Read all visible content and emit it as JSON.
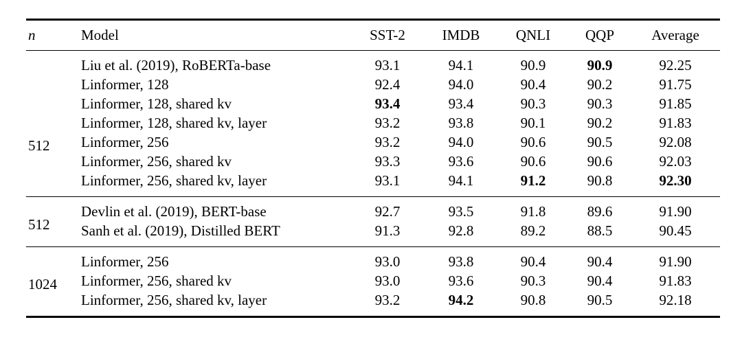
{
  "page": {
    "background_color": "#ffffff",
    "text_color": "#000000",
    "rule_color": "#000000"
  },
  "table": {
    "columns": [
      {
        "key": "n",
        "label": "n",
        "italic": true,
        "align": "left"
      },
      {
        "key": "model",
        "label": "Model",
        "italic": false,
        "align": "left"
      },
      {
        "key": "sst2",
        "label": "SST-2",
        "italic": false,
        "align": "center"
      },
      {
        "key": "imdb",
        "label": "IMDB",
        "italic": false,
        "align": "center"
      },
      {
        "key": "qnli",
        "label": "QNLI",
        "italic": false,
        "align": "center"
      },
      {
        "key": "qqp",
        "label": "QQP",
        "italic": false,
        "align": "center"
      },
      {
        "key": "avg",
        "label": "Average",
        "italic": false,
        "align": "center"
      }
    ],
    "groups": [
      {
        "n": "512",
        "rows": [
          {
            "model": "Liu et al. (2019), RoBERTa-base",
            "values": [
              "93.1",
              "94.1",
              "90.9",
              "90.9",
              "92.25"
            ],
            "bold": [
              3
            ]
          },
          {
            "model": "Linformer, 128",
            "values": [
              "92.4",
              "94.0",
              "90.4",
              "90.2",
              "91.75"
            ],
            "bold": []
          },
          {
            "model": "Linformer, 128, shared kv",
            "values": [
              "93.4",
              "93.4",
              "90.3",
              "90.3",
              "91.85"
            ],
            "bold": [
              0
            ]
          },
          {
            "model": "Linformer, 128, shared kv, layer",
            "values": [
              "93.2",
              "93.8",
              "90.1",
              "90.2",
              "91.83"
            ],
            "bold": []
          },
          {
            "model": "Linformer, 256",
            "values": [
              "93.2",
              "94.0",
              "90.6",
              "90.5",
              "92.08"
            ],
            "bold": []
          },
          {
            "model": "Linformer, 256, shared kv",
            "values": [
              "93.3",
              "93.6",
              "90.6",
              "90.6",
              "92.03"
            ],
            "bold": []
          },
          {
            "model": "Linformer, 256, shared kv, layer",
            "values": [
              "93.1",
              "94.1",
              "91.2",
              "90.8",
              "92.30"
            ],
            "bold": [
              2,
              4
            ]
          }
        ]
      },
      {
        "n": "512",
        "rows": [
          {
            "model": "Devlin et al. (2019), BERT-base",
            "values": [
              "92.7",
              "93.5",
              "91.8",
              "89.6",
              "91.90"
            ],
            "bold": []
          },
          {
            "model": "Sanh et al. (2019), Distilled BERT",
            "values": [
              "91.3",
              "92.8",
              "89.2",
              "88.5",
              "90.45"
            ],
            "bold": []
          }
        ]
      },
      {
        "n": "1024",
        "rows": [
          {
            "model": "Linformer, 256",
            "values": [
              "93.0",
              "93.8",
              "90.4",
              "90.4",
              "91.90"
            ],
            "bold": []
          },
          {
            "model": "Linformer, 256, shared kv",
            "values": [
              "93.0",
              "93.6",
              "90.3",
              "90.4",
              "91.83"
            ],
            "bold": []
          },
          {
            "model": "Linformer, 256, shared kv, layer",
            "values": [
              "93.2",
              "94.2",
              "90.8",
              "90.5",
              "92.18"
            ],
            "bold": [
              1
            ]
          }
        ]
      }
    ]
  }
}
